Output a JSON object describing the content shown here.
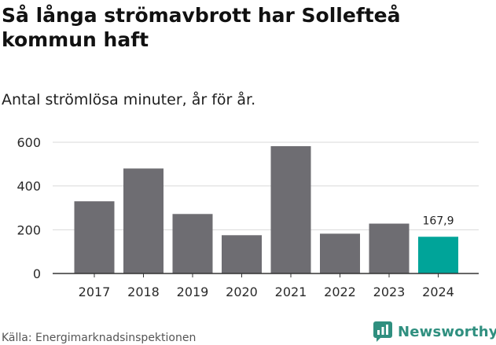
{
  "title": "Så långa strömavbrott har Sollefteå kommun haft",
  "subtitle": "Antal strömlösa minuter, år för år.",
  "source": "Källa: Energimarknadsinspektionen",
  "brand": {
    "name": "Newsworthy",
    "icon": "newsworthy-logo-icon",
    "color": "#2f8f7f"
  },
  "chart_data": {
    "type": "bar",
    "title": "Så långa strömavbrott har Sollefteå kommun haft",
    "subtitle": "Antal strömlösa minuter, år för år.",
    "xlabel": "",
    "ylabel": "",
    "categories": [
      "2017",
      "2018",
      "2019",
      "2020",
      "2021",
      "2022",
      "2023",
      "2024"
    ],
    "values": [
      330,
      480,
      272,
      175,
      582,
      182,
      228,
      167.9
    ],
    "ylim": [
      0,
      600
    ],
    "yticks": [
      0,
      200,
      400,
      600
    ],
    "grid": true,
    "bar_color": "#6e6d72",
    "highlight_color": "#00a499",
    "highlight_index": 7,
    "annotations": [
      {
        "category": "2024",
        "text": "167,9"
      }
    ]
  }
}
